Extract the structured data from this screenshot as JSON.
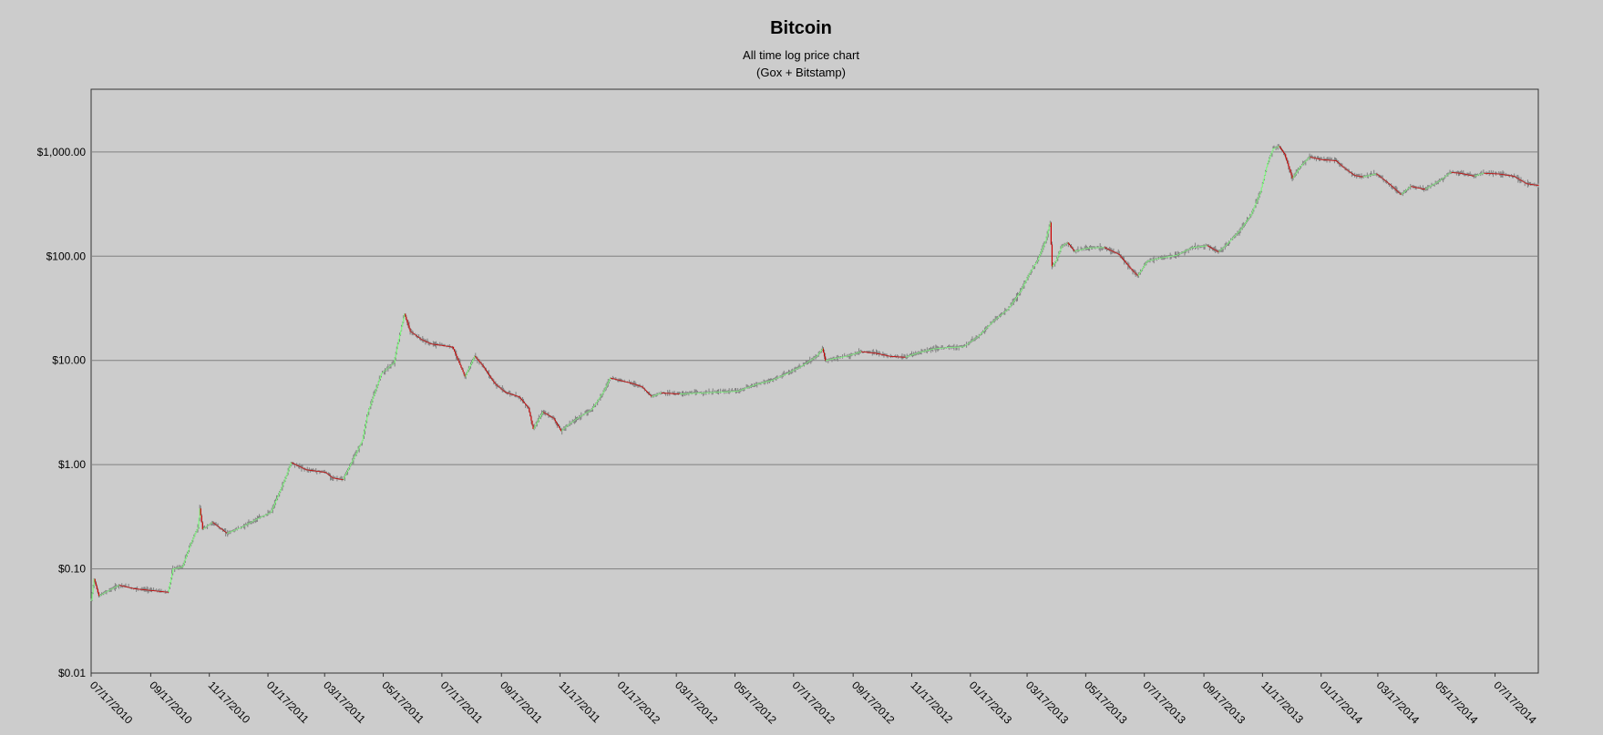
{
  "chart_data": {
    "type": "candlestick",
    "title": "Bitcoin",
    "subtitle_lines": [
      "All time log price chart",
      "(Gox + Bitstamp)"
    ],
    "y_scale": "log",
    "ylim": [
      0.01,
      4000
    ],
    "y_ticks": [
      {
        "value": 0.01,
        "label": "$0.01"
      },
      {
        "value": 0.1,
        "label": "$0.10"
      },
      {
        "value": 1,
        "label": "$1.00"
      },
      {
        "value": 10,
        "label": "$10.00"
      },
      {
        "value": 100,
        "label": "$100.00"
      },
      {
        "value": 1000,
        "label": "$1,000.00"
      }
    ],
    "x_ticks": [
      "07/17/2010",
      "09/17/2010",
      "11/17/2010",
      "01/17/2011",
      "03/17/2011",
      "05/17/2011",
      "07/17/2011",
      "09/17/2011",
      "11/17/2011",
      "01/17/2012",
      "03/17/2012",
      "05/17/2012",
      "07/17/2012",
      "09/17/2012",
      "11/17/2012",
      "01/17/2013",
      "03/17/2013",
      "05/17/2013",
      "07/17/2013",
      "09/17/2013",
      "11/17/2013",
      "01/17/2014",
      "03/17/2014",
      "05/17/2014",
      "07/17/2014"
    ],
    "xlim": [
      "2010-07-17",
      "2014-08-31"
    ],
    "grid": "horizontal",
    "legend": "none",
    "colors": {
      "background": "#cccccc",
      "grid": "#808080",
      "up": "#80ff80",
      "down": "#cc0000",
      "wick": "#808080"
    },
    "close_series": [
      [
        "2010-07-17",
        0.05
      ],
      [
        "2010-07-20",
        0.08
      ],
      [
        "2010-07-25",
        0.055
      ],
      [
        "2010-08-01",
        0.06
      ],
      [
        "2010-08-15",
        0.07
      ],
      [
        "2010-08-30",
        0.065
      ],
      [
        "2010-09-20",
        0.062
      ],
      [
        "2010-10-05",
        0.06
      ],
      [
        "2010-10-10",
        0.1
      ],
      [
        "2010-10-20",
        0.105
      ],
      [
        "2010-10-28",
        0.17
      ],
      [
        "2010-11-05",
        0.25
      ],
      [
        "2010-11-07",
        0.38
      ],
      [
        "2010-11-10",
        0.24
      ],
      [
        "2010-11-20",
        0.28
      ],
      [
        "2010-12-05",
        0.22
      ],
      [
        "2010-12-20",
        0.25
      ],
      [
        "2011-01-05",
        0.3
      ],
      [
        "2011-01-20",
        0.35
      ],
      [
        "2011-02-03",
        0.7
      ],
      [
        "2011-02-10",
        1.05
      ],
      [
        "2011-02-25",
        0.9
      ],
      [
        "2011-03-17",
        0.85
      ],
      [
        "2011-03-25",
        0.75
      ],
      [
        "2011-04-05",
        0.72
      ],
      [
        "2011-04-15",
        1.1
      ],
      [
        "2011-04-25",
        1.7
      ],
      [
        "2011-05-01",
        3.2
      ],
      [
        "2011-05-15",
        7.5
      ],
      [
        "2011-05-28",
        9.5
      ],
      [
        "2011-06-02",
        16
      ],
      [
        "2011-06-08",
        28
      ],
      [
        "2011-06-14",
        19
      ],
      [
        "2011-06-25",
        16
      ],
      [
        "2011-07-05",
        14.5
      ],
      [
        "2011-07-17",
        14
      ],
      [
        "2011-07-28",
        13.5
      ],
      [
        "2011-08-05",
        9
      ],
      [
        "2011-08-10",
        7
      ],
      [
        "2011-08-20",
        11
      ],
      [
        "2011-08-28",
        9
      ],
      [
        "2011-09-10",
        6
      ],
      [
        "2011-09-20",
        5
      ],
      [
        "2011-10-05",
        4.5
      ],
      [
        "2011-10-15",
        3.5
      ],
      [
        "2011-10-20",
        2.2
      ],
      [
        "2011-10-30",
        3.2
      ],
      [
        "2011-11-10",
        2.8
      ],
      [
        "2011-11-18",
        2.1
      ],
      [
        "2011-11-25",
        2.4
      ],
      [
        "2011-12-05",
        2.8
      ],
      [
        "2011-12-20",
        3.4
      ],
      [
        "2012-01-01",
        5
      ],
      [
        "2012-01-08",
        6.8
      ],
      [
        "2012-01-20",
        6.4
      ],
      [
        "2012-02-01",
        6
      ],
      [
        "2012-02-10",
        5.6
      ],
      [
        "2012-02-20",
        4.5
      ],
      [
        "2012-03-01",
        4.9
      ],
      [
        "2012-03-20",
        4.8
      ],
      [
        "2012-04-10",
        4.9
      ],
      [
        "2012-05-01",
        5
      ],
      [
        "2012-05-20",
        5.1
      ],
      [
        "2012-06-10",
        6
      ],
      [
        "2012-06-25",
        6.5
      ],
      [
        "2012-07-10",
        7.5
      ],
      [
        "2012-07-25",
        8.8
      ],
      [
        "2012-08-10",
        11
      ],
      [
        "2012-08-16",
        13
      ],
      [
        "2012-08-19",
        10
      ],
      [
        "2012-08-28",
        10.5
      ],
      [
        "2012-09-10",
        11
      ],
      [
        "2012-09-25",
        12.2
      ],
      [
        "2012-10-10",
        11.8
      ],
      [
        "2012-10-25",
        11
      ],
      [
        "2012-11-10",
        10.8
      ],
      [
        "2012-11-25",
        12
      ],
      [
        "2012-12-10",
        13
      ],
      [
        "2012-12-25",
        13.4
      ],
      [
        "2013-01-10",
        13.6
      ],
      [
        "2013-01-25",
        17
      ],
      [
        "2013-02-10",
        24
      ],
      [
        "2013-02-25",
        31
      ],
      [
        "2013-03-10",
        46
      ],
      [
        "2013-03-20",
        70
      ],
      [
        "2013-03-28",
        92
      ],
      [
        "2013-04-05",
        140
      ],
      [
        "2013-04-10",
        210
      ],
      [
        "2013-04-12",
        80
      ],
      [
        "2013-04-16",
        90
      ],
      [
        "2013-04-22",
        125
      ],
      [
        "2013-04-28",
        135
      ],
      [
        "2013-05-05",
        112
      ],
      [
        "2013-05-20",
        121
      ],
      [
        "2013-06-05",
        122
      ],
      [
        "2013-06-20",
        105
      ],
      [
        "2013-07-05",
        72
      ],
      [
        "2013-07-10",
        65
      ],
      [
        "2013-07-20",
        90
      ],
      [
        "2013-08-01",
        96
      ],
      [
        "2013-08-20",
        103
      ],
      [
        "2013-09-05",
        122
      ],
      [
        "2013-09-20",
        127
      ],
      [
        "2013-10-02",
        110
      ],
      [
        "2013-10-10",
        128
      ],
      [
        "2013-10-25",
        180
      ],
      [
        "2013-11-05",
        250
      ],
      [
        "2013-11-15",
        420
      ],
      [
        "2013-11-22",
        780
      ],
      [
        "2013-11-28",
        1080
      ],
      [
        "2013-12-04",
        1140
      ],
      [
        "2013-12-10",
        950
      ],
      [
        "2013-12-18",
        560
      ],
      [
        "2013-12-26",
        720
      ],
      [
        "2014-01-05",
        900
      ],
      [
        "2014-01-17",
        850
      ],
      [
        "2014-02-01",
        830
      ],
      [
        "2014-02-10",
        700
      ],
      [
        "2014-02-20",
        600
      ],
      [
        "2014-03-01",
        580
      ],
      [
        "2014-03-15",
        620
      ],
      [
        "2014-03-28",
        500
      ],
      [
        "2014-04-10",
        390
      ],
      [
        "2014-04-20",
        470
      ],
      [
        "2014-05-05",
        440
      ],
      [
        "2014-05-20",
        530
      ],
      [
        "2014-06-01",
        640
      ],
      [
        "2014-06-10",
        630
      ],
      [
        "2014-06-25",
        590
      ],
      [
        "2014-07-05",
        630
      ],
      [
        "2014-07-20",
        620
      ],
      [
        "2014-08-05",
        590
      ],
      [
        "2014-08-18",
        500
      ],
      [
        "2014-08-31",
        480
      ]
    ]
  }
}
